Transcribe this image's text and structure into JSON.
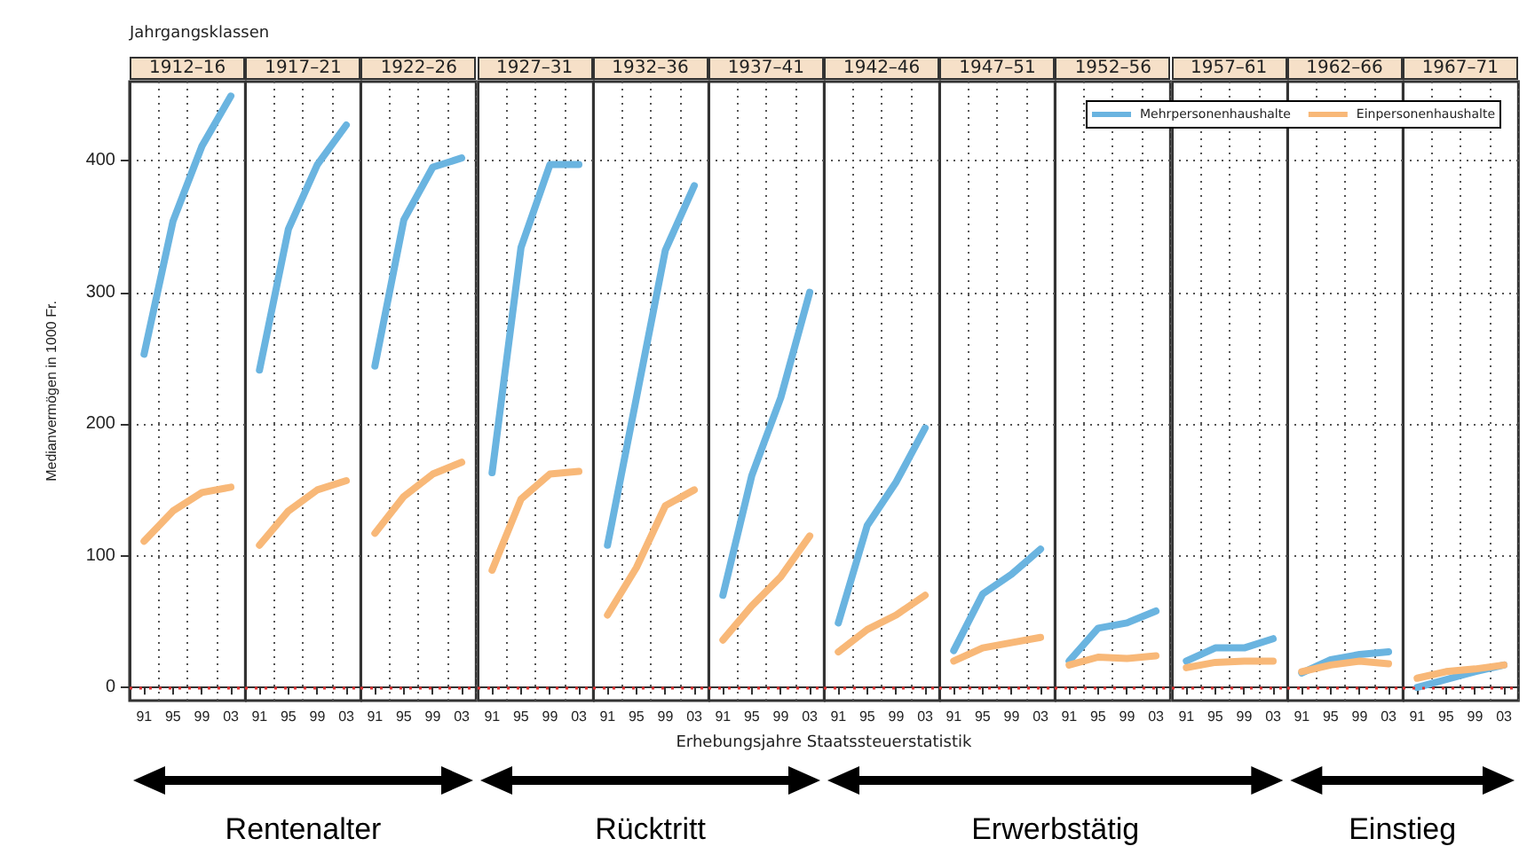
{
  "chart_data": [
    {
      "type": "line",
      "title": "1912–16",
      "subtitle": "Jahrgangsklassen",
      "ylabel": "Medianvermögen in 1000 Fr.",
      "annotations": [
        "Rentenalter"
      ],
      "categories": [
        "91",
        "95",
        "99",
        "03"
      ],
      "series": [
        {
          "color": "#6ab4e0",
          "values": [
            253,
            354,
            411,
            449
          ]
        },
        {
          "color": "#f8b878",
          "values": [
            111,
            134,
            148,
            152
          ]
        }
      ],
      "ylim": [
        -10,
        460
      ],
      "yticks": [
        0,
        100,
        200,
        300,
        400
      ],
      "grid": true,
      "ref_lines": [
        {
          "axis": "y",
          "value": 0,
          "color": "#e03030",
          "line_style": "dotted"
        }
      ]
    },
    {
      "type": "line",
      "title": "1917–21",
      "categories": [
        "91",
        "95",
        "99",
        "03"
      ],
      "series": [
        {
          "color": "#6ab4e0",
          "values": [
            241,
            348,
            397,
            427
          ]
        },
        {
          "color": "#f8b878",
          "values": [
            108,
            134,
            150,
            157
          ]
        }
      ],
      "ylim": [
        -10,
        460
      ],
      "yticks": [
        0,
        100,
        200,
        300,
        400
      ],
      "tick_labels": "x",
      "grid": true,
      "ref_lines": [
        {
          "axis": "y",
          "value": 0,
          "color": "#e03030",
          "line_style": "dotted"
        }
      ]
    },
    {
      "type": "line",
      "title": "1922–26",
      "categories": [
        "91",
        "95",
        "99",
        "03"
      ],
      "series": [
        {
          "color": "#6ab4e0",
          "values": [
            244,
            355,
            395,
            402
          ]
        },
        {
          "color": "#f8b878",
          "values": [
            117,
            145,
            162,
            171
          ]
        }
      ],
      "ylim": [
        -10,
        460
      ],
      "yticks": [
        0,
        100,
        200,
        300,
        400
      ],
      "tick_labels": "x",
      "grid": true,
      "ref_lines": [
        {
          "axis": "y",
          "value": 0,
          "color": "#e03030",
          "line_style": "dotted"
        }
      ]
    },
    {
      "type": "line",
      "title": "1927–31",
      "annotations": [
        "Rücktritt"
      ],
      "categories": [
        "91",
        "95",
        "99",
        "03"
      ],
      "series": [
        {
          "color": "#6ab4e0",
          "values": [
            163,
            334,
            397,
            397
          ]
        },
        {
          "color": "#f8b878",
          "values": [
            89,
            143,
            162,
            164
          ]
        }
      ],
      "ylim": [
        -10,
        460
      ],
      "yticks": [
        0,
        100,
        200,
        300,
        400
      ],
      "tick_labels": "x",
      "grid": true,
      "ref_lines": [
        {
          "axis": "y",
          "value": 0,
          "color": "#e03030",
          "line_style": "dotted"
        }
      ]
    },
    {
      "type": "line",
      "title": "1932–36",
      "categories": [
        "91",
        "95",
        "99",
        "03"
      ],
      "series": [
        {
          "color": "#6ab4e0",
          "values": [
            108,
            220,
            332,
            381
          ]
        },
        {
          "color": "#f8b878",
          "values": [
            55,
            91,
            138,
            150
          ]
        }
      ],
      "ylim": [
        -10,
        460
      ],
      "yticks": [
        0,
        100,
        200,
        300,
        400
      ],
      "tick_labels": "x",
      "grid": true,
      "ref_lines": [
        {
          "axis": "y",
          "value": 0,
          "color": "#e03030",
          "line_style": "dotted"
        }
      ]
    },
    {
      "type": "line",
      "title": "1937–41",
      "categories": [
        "91",
        "95",
        "99",
        "03"
      ],
      "series": [
        {
          "color": "#6ab4e0",
          "values": [
            70,
            161,
            220,
            300
          ]
        },
        {
          "color": "#f8b878",
          "values": [
            36,
            62,
            84,
            115
          ]
        }
      ],
      "ylim": [
        -10,
        460
      ],
      "yticks": [
        0,
        100,
        200,
        300,
        400
      ],
      "tick_labels": "x",
      "grid": true,
      "ref_lines": [
        {
          "axis": "y",
          "value": 0,
          "color": "#e03030",
          "line_style": "dotted"
        }
      ]
    },
    {
      "type": "line",
      "title": "1942–46",
      "annotations": [
        "Erwerbstätig"
      ],
      "categories": [
        "91",
        "95",
        "99",
        "03"
      ],
      "series": [
        {
          "color": "#6ab4e0",
          "values": [
            49,
            123,
            156,
            197
          ]
        },
        {
          "color": "#f8b878",
          "values": [
            27,
            44,
            55,
            70
          ]
        }
      ],
      "ylim": [
        -10,
        460
      ],
      "yticks": [
        0,
        100,
        200,
        300,
        400
      ],
      "tick_labels": "x",
      "grid": true,
      "ref_lines": [
        {
          "axis": "y",
          "value": 0,
          "color": "#e03030",
          "line_style": "dotted"
        }
      ]
    },
    {
      "type": "line",
      "title": "1947–51",
      "categories": [
        "91",
        "95",
        "99",
        "03"
      ],
      "series": [
        {
          "color": "#6ab4e0",
          "values": [
            28,
            71,
            86,
            105
          ]
        },
        {
          "color": "#f8b878",
          "values": [
            20,
            30,
            34,
            38
          ]
        }
      ],
      "ylim": [
        -10,
        460
      ],
      "yticks": [
        0,
        100,
        200,
        300,
        400
      ],
      "tick_labels": "x",
      "grid": true,
      "ref_lines": [
        {
          "axis": "y",
          "value": 0,
          "color": "#e03030",
          "line_style": "dotted"
        }
      ]
    },
    {
      "type": "line",
      "title": "1952–56",
      "categories": [
        "91",
        "95",
        "99",
        "03"
      ],
      "legend": "top right",
      "series": [
        {
          "name": "Mehrpersonenhaushalte",
          "color": "#6ab4e0",
          "values": [
            20,
            45,
            49,
            58
          ]
        },
        {
          "name": "Einpersonenhaushalte",
          "color": "#f8b878",
          "values": [
            17,
            23,
            22,
            24
          ]
        }
      ],
      "ylim": [
        -10,
        460
      ],
      "yticks": [
        0,
        100,
        200,
        300,
        400
      ],
      "tick_labels": "x",
      "grid": true,
      "ref_lines": [
        {
          "axis": "y",
          "value": 0,
          "color": "#e03030",
          "line_style": "dotted"
        }
      ]
    },
    {
      "type": "line",
      "title": "1957–61",
      "categories": [
        "91",
        "95",
        "99",
        "03"
      ],
      "series": [
        {
          "color": "#6ab4e0",
          "values": [
            20,
            30,
            30,
            37
          ]
        },
        {
          "color": "#f8b878",
          "values": [
            15,
            19,
            20,
            20
          ]
        }
      ],
      "ylim": [
        -10,
        460
      ],
      "yticks": [
        0,
        100,
        200,
        300,
        400
      ],
      "tick_labels": "x",
      "grid": true,
      "ref_lines": [
        {
          "axis": "y",
          "value": 0,
          "color": "#e03030",
          "line_style": "dotted"
        }
      ]
    },
    {
      "type": "line",
      "title": "1962–66",
      "annotations": [
        "Einstieg"
      ],
      "categories": [
        "91",
        "95",
        "99",
        "03"
      ],
      "series": [
        {
          "color": "#6ab4e0",
          "values": [
            11,
            21,
            25,
            27
          ]
        },
        {
          "color": "#f8b878",
          "values": [
            12,
            17,
            20,
            18
          ]
        }
      ],
      "ylim": [
        -10,
        460
      ],
      "yticks": [
        0,
        100,
        200,
        300,
        400
      ],
      "tick_labels": "x",
      "grid": true,
      "ref_lines": [
        {
          "axis": "y",
          "value": 0,
          "color": "#e03030",
          "line_style": "dotted"
        }
      ]
    },
    {
      "type": "line",
      "title": "1967–71",
      "categories": [
        "91",
        "95",
        "99",
        "03"
      ],
      "series": [
        {
          "color": "#6ab4e0",
          "values": [
            0,
            6,
            12,
            17
          ]
        },
        {
          "color": "#f8b878",
          "values": [
            7,
            12,
            14,
            17
          ]
        }
      ],
      "ylim": [
        -10,
        460
      ],
      "yticks": [
        0,
        100,
        200,
        300,
        400
      ],
      "tick_labels": "x",
      "grid": true,
      "ref_lines": [
        {
          "axis": "y",
          "value": 0,
          "color": "#e03030",
          "line_style": "dotted"
        }
      ]
    },
    {
      "type": "other",
      "annotations": [
        "Erhebungsjahre Staatssteuerstatistik"
      ]
    }
  ]
}
